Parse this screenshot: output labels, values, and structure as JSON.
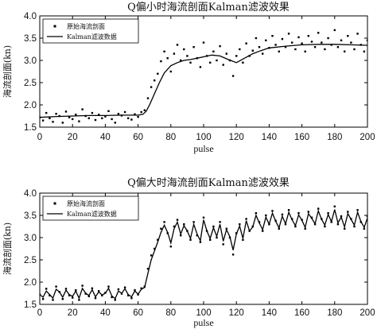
{
  "chart_data": [
    {
      "type": "line",
      "title": "Q偏小时海流剖面Kalman滤波效果",
      "xlabel": "pulse",
      "ylabel": "海流剖面(kn)",
      "xlim": [
        0,
        200
      ],
      "ylim": [
        1.5,
        4.0
      ],
      "xticks": [
        "0",
        "20",
        "40",
        "60",
        "80",
        "100",
        "120",
        "140",
        "160",
        "180",
        "200"
      ],
      "yticks": [
        "1.5",
        "2.0",
        "2.5",
        "3.0",
        "3.5",
        "4.0"
      ],
      "legend_position": "top-left",
      "series": [
        {
          "name": "原始海流剖面",
          "style": "markers",
          "x": [
            0,
            2,
            4,
            6,
            8,
            10,
            12,
            14,
            16,
            18,
            20,
            22,
            24,
            26,
            28,
            30,
            32,
            34,
            36,
            38,
            40,
            42,
            44,
            46,
            48,
            50,
            52,
            54,
            56,
            58,
            60,
            62,
            64,
            66,
            68,
            70,
            72,
            74,
            76,
            78,
            80,
            82,
            84,
            86,
            88,
            90,
            92,
            94,
            96,
            98,
            100,
            102,
            104,
            106,
            108,
            110,
            112,
            114,
            116,
            118,
            120,
            122,
            124,
            126,
            128,
            130,
            132,
            134,
            136,
            138,
            140,
            142,
            144,
            146,
            148,
            150,
            152,
            154,
            156,
            158,
            160,
            162,
            164,
            166,
            168,
            170,
            172,
            174,
            176,
            178,
            180,
            182,
            184,
            186,
            188,
            190,
            192,
            194,
            196,
            198,
            200
          ],
          "y": [
            1.72,
            1.65,
            1.82,
            1.7,
            1.62,
            1.8,
            1.75,
            1.6,
            1.85,
            1.72,
            1.68,
            1.78,
            1.63,
            1.9,
            1.75,
            1.7,
            1.82,
            1.66,
            1.78,
            1.7,
            1.74,
            1.86,
            1.68,
            1.6,
            1.8,
            1.76,
            1.84,
            1.7,
            1.67,
            1.79,
            1.73,
            1.84,
            1.88,
            2.15,
            2.4,
            2.55,
            2.7,
            2.98,
            3.2,
            3.05,
            2.75,
            3.15,
            3.35,
            3.0,
            3.25,
            3.1,
            2.95,
            3.3,
            3.05,
            2.85,
            3.4,
            3.1,
            2.95,
            3.2,
            3.0,
            3.32,
            2.9,
            3.15,
            3.0,
            2.65,
            3.1,
            3.25,
            2.95,
            3.38,
            3.1,
            3.22,
            3.5,
            3.3,
            3.15,
            3.45,
            3.28,
            3.55,
            3.35,
            3.2,
            3.48,
            3.3,
            3.6,
            3.4,
            3.25,
            3.52,
            3.38,
            3.2,
            3.55,
            3.42,
            3.3,
            3.62,
            3.4,
            3.25,
            3.5,
            3.35,
            3.68,
            3.3,
            3.45,
            3.2,
            3.55,
            3.4,
            3.25,
            3.6,
            3.35,
            3.2,
            3.45
          ]
        },
        {
          "name": "Kalman滤波数据",
          "style": "line",
          "x": [
            0,
            10,
            20,
            30,
            40,
            50,
            55,
            60,
            63,
            65,
            67,
            70,
            73,
            76,
            80,
            84,
            88,
            92,
            96,
            100,
            105,
            110,
            115,
            120,
            125,
            130,
            135,
            140,
            150,
            160,
            170,
            180,
            190,
            200
          ],
          "y": [
            1.72,
            1.74,
            1.75,
            1.76,
            1.76,
            1.77,
            1.77,
            1.77,
            1.79,
            1.86,
            2.0,
            2.25,
            2.5,
            2.72,
            2.88,
            2.95,
            3.0,
            3.02,
            3.05,
            3.08,
            3.12,
            3.1,
            3.02,
            2.95,
            3.05,
            3.15,
            3.22,
            3.28,
            3.32,
            3.35,
            3.36,
            3.36,
            3.35,
            3.34
          ]
        }
      ]
    },
    {
      "type": "line",
      "title": "Q偏大时海流剖面Kalman滤波效果",
      "xlabel": "pulse",
      "ylabel": "海流剖面(kn)",
      "xlim": [
        0,
        200
      ],
      "ylim": [
        1.5,
        4.0
      ],
      "xticks": [
        "0",
        "20",
        "40",
        "60",
        "80",
        "100",
        "120",
        "140",
        "160",
        "180",
        "200"
      ],
      "yticks": [
        "1.5",
        "2.0",
        "2.5",
        "3.0",
        "3.5",
        "4.0"
      ],
      "legend_position": "top-left",
      "series": [
        {
          "name": "原始海流剖面",
          "style": "markers",
          "x": [
            0,
            2,
            4,
            6,
            8,
            10,
            12,
            14,
            16,
            18,
            20,
            22,
            24,
            26,
            28,
            30,
            32,
            34,
            36,
            38,
            40,
            42,
            44,
            46,
            48,
            50,
            52,
            54,
            56,
            58,
            60,
            62,
            64,
            66,
            68,
            70,
            72,
            74,
            76,
            78,
            80,
            82,
            84,
            86,
            88,
            90,
            92,
            94,
            96,
            98,
            100,
            102,
            104,
            106,
            108,
            110,
            112,
            114,
            116,
            118,
            120,
            122,
            124,
            126,
            128,
            130,
            132,
            134,
            136,
            138,
            140,
            142,
            144,
            146,
            148,
            150,
            152,
            154,
            156,
            158,
            160,
            162,
            164,
            166,
            168,
            170,
            172,
            174,
            176,
            178,
            180,
            182,
            184,
            186,
            188,
            190,
            192,
            194,
            196,
            198,
            200
          ],
          "y": [
            1.72,
            1.62,
            1.85,
            1.7,
            1.6,
            1.9,
            1.78,
            1.62,
            1.85,
            1.7,
            1.65,
            1.82,
            1.6,
            1.92,
            1.74,
            1.68,
            1.86,
            1.64,
            1.8,
            1.7,
            1.76,
            1.9,
            1.66,
            1.6,
            1.84,
            1.74,
            1.88,
            1.7,
            1.64,
            1.82,
            1.72,
            1.86,
            1.9,
            2.3,
            2.6,
            2.75,
            2.95,
            3.2,
            3.35,
            3.1,
            2.8,
            3.25,
            3.4,
            3.05,
            3.3,
            3.15,
            2.95,
            3.35,
            3.05,
            2.9,
            3.45,
            3.15,
            2.95,
            3.25,
            3.0,
            3.35,
            2.85,
            3.2,
            3.0,
            2.62,
            3.1,
            3.3,
            2.95,
            3.42,
            3.15,
            3.25,
            3.55,
            3.35,
            3.15,
            3.5,
            3.3,
            3.6,
            3.38,
            3.2,
            3.52,
            3.3,
            3.62,
            3.42,
            3.25,
            3.55,
            3.4,
            3.2,
            3.58,
            3.45,
            3.3,
            3.65,
            3.42,
            3.25,
            3.55,
            3.35,
            3.7,
            3.3,
            3.48,
            3.2,
            3.58,
            3.42,
            3.25,
            3.62,
            3.35,
            3.2,
            3.48
          ]
        },
        {
          "name": "Kalman滤波数据",
          "style": "line",
          "x": [
            0,
            2,
            4,
            6,
            8,
            10,
            12,
            14,
            16,
            18,
            20,
            22,
            24,
            26,
            28,
            30,
            32,
            34,
            36,
            38,
            40,
            42,
            44,
            46,
            48,
            50,
            52,
            54,
            56,
            58,
            60,
            62,
            64,
            66,
            68,
            70,
            72,
            74,
            76,
            78,
            80,
            82,
            84,
            86,
            88,
            90,
            92,
            94,
            96,
            98,
            100,
            102,
            104,
            106,
            108,
            110,
            112,
            114,
            116,
            118,
            120,
            122,
            124,
            126,
            128,
            130,
            132,
            134,
            136,
            138,
            140,
            142,
            144,
            146,
            148,
            150,
            152,
            154,
            156,
            158,
            160,
            162,
            164,
            166,
            168,
            170,
            172,
            174,
            176,
            178,
            180,
            182,
            184,
            186,
            188,
            190,
            192,
            194,
            196,
            198,
            200
          ],
          "y": [
            1.72,
            1.66,
            1.8,
            1.72,
            1.64,
            1.84,
            1.78,
            1.66,
            1.82,
            1.72,
            1.68,
            1.8,
            1.64,
            1.86,
            1.75,
            1.7,
            1.83,
            1.67,
            1.78,
            1.71,
            1.75,
            1.86,
            1.69,
            1.63,
            1.8,
            1.75,
            1.85,
            1.72,
            1.67,
            1.8,
            1.73,
            1.84,
            1.88,
            2.2,
            2.5,
            2.7,
            2.9,
            3.12,
            3.28,
            3.12,
            2.88,
            3.2,
            3.35,
            3.08,
            3.27,
            3.15,
            2.98,
            3.3,
            3.08,
            2.93,
            3.4,
            3.15,
            2.98,
            3.22,
            3.03,
            3.3,
            2.92,
            3.18,
            3.02,
            2.72,
            3.08,
            3.26,
            2.98,
            3.38,
            3.15,
            3.24,
            3.5,
            3.33,
            3.18,
            3.46,
            3.3,
            3.55,
            3.37,
            3.22,
            3.48,
            3.31,
            3.57,
            3.4,
            3.27,
            3.51,
            3.39,
            3.23,
            3.54,
            3.43,
            3.31,
            3.6,
            3.41,
            3.28,
            3.52,
            3.36,
            3.63,
            3.33,
            3.46,
            3.24,
            3.54,
            3.41,
            3.28,
            3.57,
            3.36,
            3.23,
            3.44
          ]
        }
      ]
    }
  ]
}
